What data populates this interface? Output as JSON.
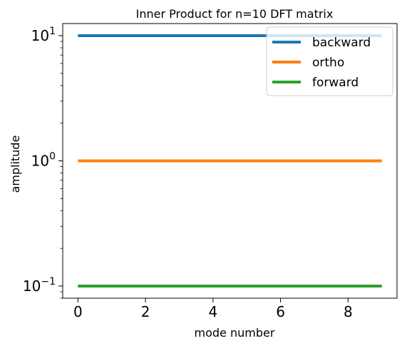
{
  "chart_data": {
    "type": "line",
    "title": "Inner Product for n=10 DFT matrix",
    "xlabel": "mode number",
    "ylabel": "amplitude",
    "x": [
      0,
      1,
      2,
      3,
      4,
      5,
      6,
      7,
      8,
      9
    ],
    "xlim": [
      -0.45,
      9.45
    ],
    "xticks": [
      0,
      2,
      4,
      6,
      8
    ],
    "yscale": "log",
    "ylim": [
      0.08,
      12.5
    ],
    "yticks": [
      {
        "value": 10,
        "base": "10",
        "exp": "1"
      },
      {
        "value": 1,
        "base": "10",
        "exp": "0"
      },
      {
        "value": 0.1,
        "base": "10",
        "exp": "−1"
      }
    ],
    "grid": false,
    "legend_position": "top-right",
    "series": [
      {
        "name": "backward",
        "color": "#1f77b4",
        "values": [
          10,
          10,
          10,
          10,
          10,
          10,
          10,
          10,
          10,
          10
        ]
      },
      {
        "name": "ortho",
        "color": "#ff7f0e",
        "values": [
          1,
          1,
          1,
          1,
          1,
          1,
          1,
          1,
          1,
          1
        ]
      },
      {
        "name": "forward",
        "color": "#2ca02c",
        "values": [
          0.1,
          0.1,
          0.1,
          0.1,
          0.1,
          0.1,
          0.1,
          0.1,
          0.1,
          0.1
        ]
      }
    ]
  }
}
